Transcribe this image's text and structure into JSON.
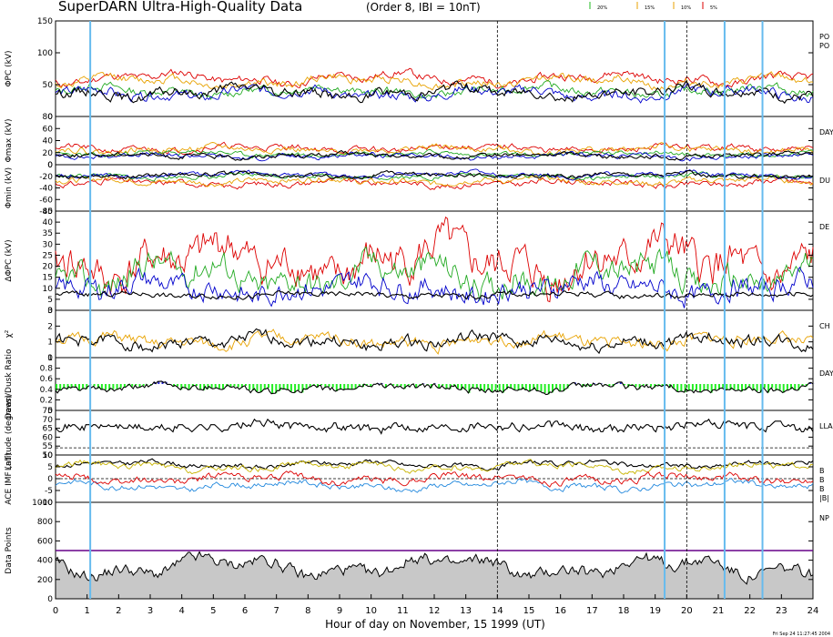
{
  "header": {
    "title": "SuperDARN Ultra-High-Quality Data",
    "subtitle": "(Order 8, IBI = 10nT)",
    "legend": [
      {
        "label": "20%",
        "color": "#22bb22"
      },
      {
        "label": "15%",
        "color": "#e8a200"
      },
      {
        "label": "10%",
        "color": "#e8a200"
      },
      {
        "label": "5%",
        "color": "#dd0000"
      }
    ]
  },
  "footer": {
    "xlabel": "Hour of day on November, 15 1999 (UT)",
    "timestamp": "Fri Sep 24 11:27:45 2004"
  },
  "chart_data": {
    "type": "line",
    "x_range": [
      0,
      24
    ],
    "x_ticks": [
      0,
      1,
      2,
      3,
      4,
      5,
      6,
      7,
      8,
      9,
      10,
      11,
      12,
      13,
      14,
      15,
      16,
      17,
      18,
      19,
      20,
      21,
      22,
      23,
      24
    ],
    "dashed_lines_hours": [
      14.0,
      20.0
    ],
    "blue_lines_hours": [
      1.1,
      19.3,
      21.2,
      22.4
    ],
    "panels": [
      {
        "id": "phi-pc",
        "ylabel": "ΦPC (kV)",
        "ylim": [
          0,
          150
        ],
        "ticks": [
          0,
          50,
          100,
          150
        ],
        "right_labels": [
          "PO",
          "PO"
        ],
        "series": [
          {
            "name": "red",
            "color": "#dd0000",
            "mean": 60,
            "amp": 10,
            "noise": 5,
            "seed": 11
          },
          {
            "name": "orange",
            "color": "#e8a200",
            "mean": 55,
            "amp": 9,
            "noise": 5,
            "seed": 12
          },
          {
            "name": "green",
            "color": "#22aa22",
            "mean": 40,
            "amp": 9,
            "noise": 5,
            "seed": 13
          },
          {
            "name": "blue",
            "color": "#0000cc",
            "mean": 36,
            "amp": 10,
            "noise": 6,
            "seed": 14
          },
          {
            "name": "black",
            "color": "#000000",
            "mean": 38,
            "amp": 10,
            "noise": 6,
            "seed": 15
          }
        ]
      },
      {
        "id": "phi-max",
        "ylabel": "Φmax (kV)",
        "ylim": [
          0,
          80
        ],
        "ticks": [
          0,
          20,
          40,
          60,
          80
        ],
        "right_labels": [
          "DAY"
        ],
        "series": [
          {
            "name": "red",
            "color": "#dd0000",
            "mean": 27,
            "amp": 5,
            "noise": 4,
            "seed": 21
          },
          {
            "name": "orange",
            "color": "#e8a200",
            "mean": 25,
            "amp": 5,
            "noise": 4,
            "seed": 22
          },
          {
            "name": "green",
            "color": "#22aa22",
            "mean": 18,
            "amp": 4,
            "noise": 3,
            "seed": 23
          },
          {
            "name": "blue",
            "color": "#0000cc",
            "mean": 14,
            "amp": 4,
            "noise": 3,
            "seed": 24
          },
          {
            "name": "black",
            "color": "#000000",
            "mean": 15,
            "amp": 4,
            "noise": 3,
            "seed": 25
          }
        ]
      },
      {
        "id": "phi-min",
        "ylabel": "Φmin (kV)",
        "ylim": [
          -80,
          0
        ],
        "ticks": [
          -80,
          -60,
          -40,
          -20,
          0
        ],
        "right_labels": [
          "DU"
        ],
        "series": [
          {
            "name": "red",
            "color": "#dd0000",
            "mean": -32,
            "amp": 6,
            "noise": 4,
            "seed": 31
          },
          {
            "name": "orange",
            "color": "#e8a200",
            "mean": -28,
            "amp": 5,
            "noise": 4,
            "seed": 32
          },
          {
            "name": "green",
            "color": "#22aa22",
            "mean": -20,
            "amp": 4,
            "noise": 3,
            "seed": 33
          },
          {
            "name": "blue",
            "color": "#0000cc",
            "mean": -17,
            "amp": 5,
            "noise": 3,
            "seed": 34
          },
          {
            "name": "black",
            "color": "#000000",
            "mean": -18,
            "amp": 4,
            "noise": 3,
            "seed": 35
          }
        ]
      },
      {
        "id": "dphi-pc",
        "ylabel": "ΔΦPC (kV)",
        "ylim": [
          0,
          45
        ],
        "ticks": [
          0,
          5,
          10,
          15,
          20,
          25,
          30,
          35,
          40,
          45
        ],
        "right_labels": [
          "DE"
        ],
        "series": [
          {
            "name": "red",
            "color": "#dd0000",
            "mean": 22,
            "amp": 9,
            "noise": 7,
            "seed": 41
          },
          {
            "name": "green",
            "color": "#22aa22",
            "mean": 16,
            "amp": 8,
            "noise": 5,
            "seed": 42
          },
          {
            "name": "blue",
            "color": "#0000cc",
            "mean": 10,
            "amp": 4,
            "noise": 4,
            "seed": 43
          },
          {
            "name": "black",
            "color": "#000000",
            "mean": 7,
            "amp": 1,
            "noise": 1,
            "seed": 44
          }
        ]
      },
      {
        "id": "chi2",
        "ylabel": "χ²",
        "ylim": [
          0,
          3
        ],
        "ticks": [
          0,
          1,
          2,
          3
        ],
        "right_labels": [
          "CH"
        ],
        "series": [
          {
            "name": "orange",
            "color": "#e8a200",
            "mean": 1.05,
            "amp": 0.35,
            "noise": 0.3,
            "seed": 51
          },
          {
            "name": "black",
            "color": "#000000",
            "mean": 1.0,
            "amp": 0.35,
            "noise": 0.3,
            "seed": 52
          }
        ]
      },
      {
        "id": "ratio",
        "ylabel": "Dawn/Dusk Ratio",
        "ylim": [
          0.0,
          1.0
        ],
        "ticks": [
          0.0,
          0.2,
          0.4,
          0.6,
          0.8,
          1.0
        ],
        "right_labels": [
          "DAY"
        ],
        "series": [
          {
            "name": "black",
            "color": "#000000",
            "mean": 0.42,
            "amp": 0.08,
            "noise": 0.05,
            "seed": 61
          }
        ],
        "fill_ref": 0.5
      },
      {
        "id": "latitude",
        "ylabel": "Latitude (degrees)",
        "ylim": [
          50,
          75
        ],
        "ticks": [
          50,
          55,
          60,
          65,
          70,
          75
        ],
        "right_labels": [
          "LLA"
        ],
        "series": [
          {
            "name": "black",
            "color": "#000000",
            "mean": 66,
            "amp": 1.5,
            "noise": 2,
            "seed": 71,
            "step": true
          }
        ],
        "dashed_ref": 54
      },
      {
        "id": "imf",
        "ylabel": "ACE IMF (nT)",
        "ylim": [
          -10,
          10
        ],
        "ticks": [
          -10,
          -5,
          0,
          5,
          10
        ],
        "right_labels": [
          "B",
          "B",
          "B",
          "|B|"
        ],
        "series": [
          {
            "name": "black",
            "color": "#000000",
            "mean": 6,
            "amp": 1.5,
            "noise": 0.8,
            "seed": 81
          },
          {
            "name": "yellow",
            "color": "#c8b400",
            "mean": 5,
            "amp": 2,
            "noise": 1,
            "seed": 82
          },
          {
            "name": "cyan",
            "color": "#2288dd",
            "mean": -3,
            "amp": 2,
            "noise": 1,
            "seed": 83
          },
          {
            "name": "red",
            "color": "#dd0000",
            "mean": 0,
            "amp": 2,
            "noise": 1.2,
            "seed": 84
          }
        ],
        "dashed_ref": 0
      },
      {
        "id": "points",
        "ylabel": "Data Points",
        "ylim": [
          0,
          1000
        ],
        "ticks": [
          0,
          200,
          400,
          600,
          800,
          1000
        ],
        "right_labels": [
          "NP"
        ],
        "series": [
          {
            "name": "black",
            "color": "#000000",
            "mean": 330,
            "amp": 120,
            "noise": 50,
            "seed": 91
          }
        ],
        "purple_level": 500
      }
    ]
  }
}
